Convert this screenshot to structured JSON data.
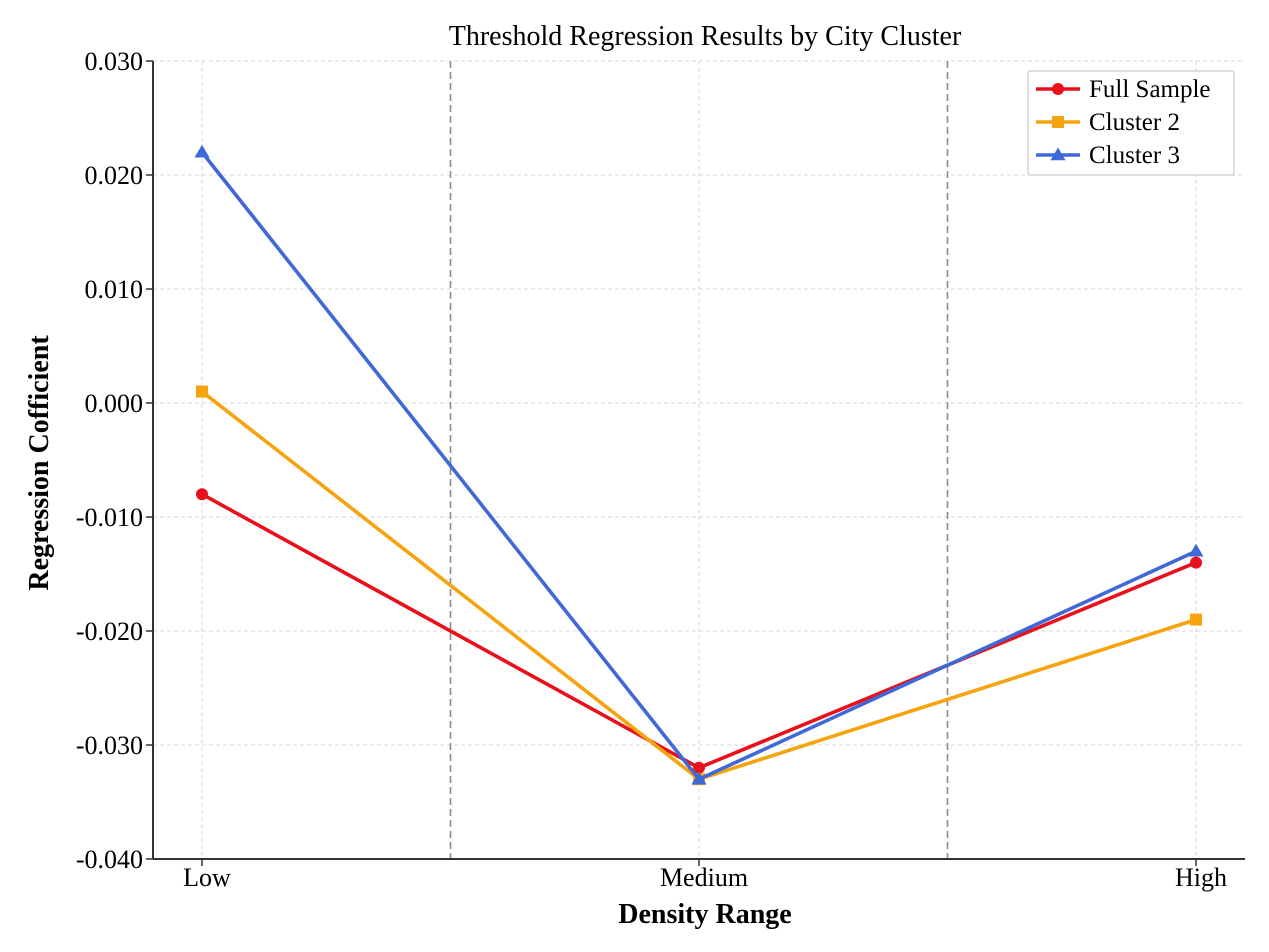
{
  "chart_data": {
    "type": "line",
    "title": "Threshold Regression Results by City Cluster",
    "xlabel": "Density Range",
    "ylabel": "Regression Cofficient",
    "categories": [
      "Low",
      "Medium",
      "High"
    ],
    "ylim": [
      -0.04,
      0.03
    ],
    "yticks": [
      0.03,
      0.02,
      0.01,
      0.0,
      -0.01,
      -0.02,
      -0.03,
      -0.04
    ],
    "ytick_labels": [
      "0.030",
      "0.020",
      "0.010",
      "0.000",
      "-0.010",
      "-0.020",
      "-0.030",
      "-0.040"
    ],
    "threshold_lines_at_category_position": [
      0.5,
      1.5
    ],
    "grid": true,
    "legend_position": "top-right",
    "series": [
      {
        "name": "Full Sample",
        "values": [
          -0.008,
          -0.032,
          -0.014
        ],
        "color": "#E8101A",
        "marker": "circle"
      },
      {
        "name": "Cluster 2",
        "values": [
          0.001,
          -0.033,
          -0.019
        ],
        "color": "#F5A30F",
        "marker": "square"
      },
      {
        "name": "Cluster 3",
        "values": [
          0.022,
          -0.033,
          -0.013
        ],
        "color": "#3F68D9",
        "marker": "triangle"
      }
    ]
  }
}
